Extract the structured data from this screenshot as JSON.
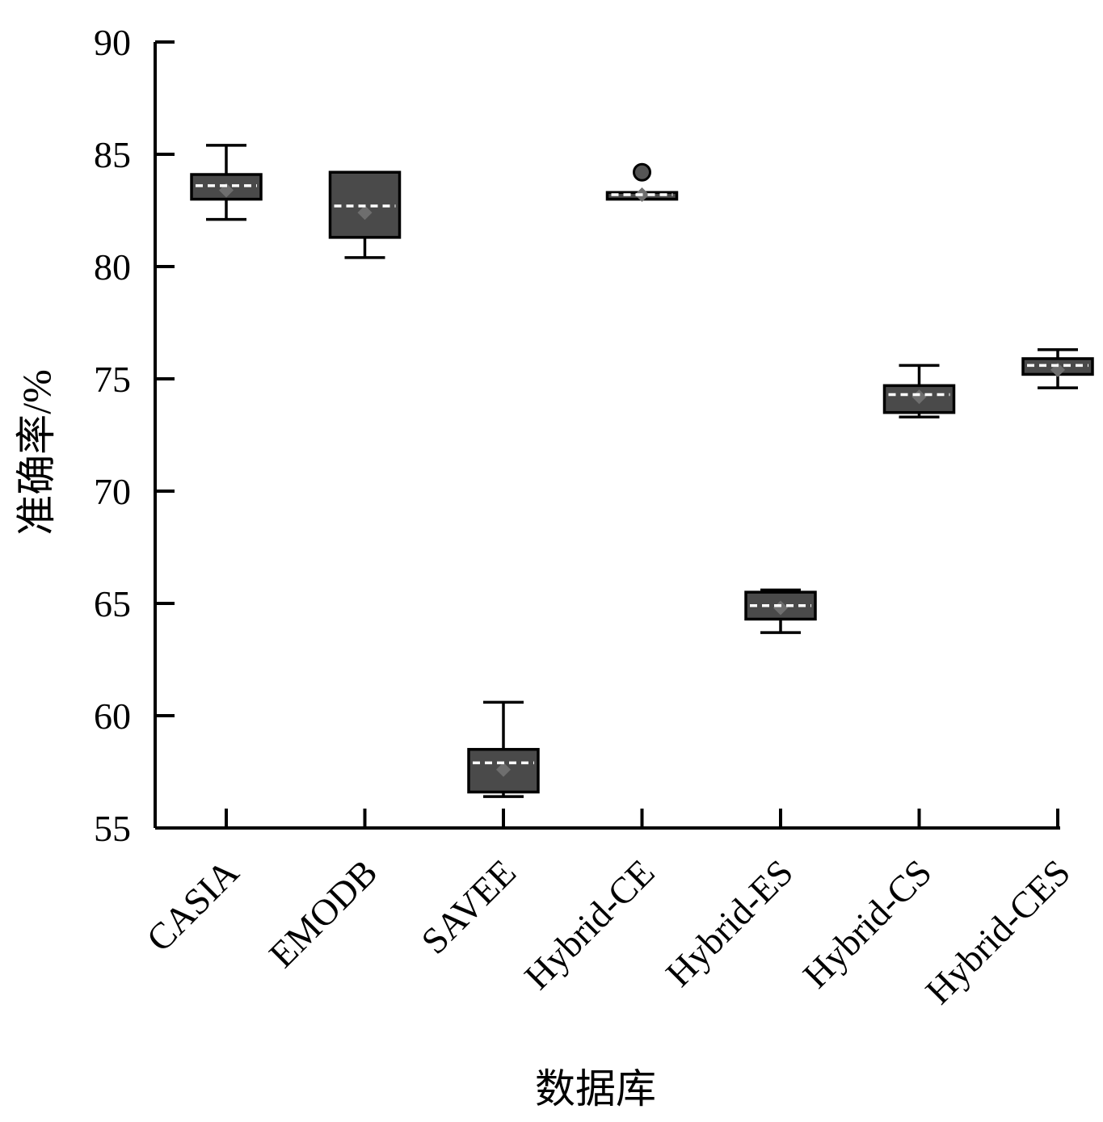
{
  "chart_data": {
    "type": "box",
    "title": "",
    "xlabel": "数据库",
    "ylabel": "准确率/%",
    "ylim": [
      55,
      90
    ],
    "yticks": [
      55,
      60,
      65,
      70,
      75,
      80,
      85,
      90
    ],
    "categories": [
      "CASIA",
      "EMODB",
      "SAVEE",
      "Hybrid-CE",
      "Hybrid-ES",
      "Hybrid-CS",
      "Hybrid-CES"
    ],
    "grid": false,
    "legend": "none",
    "boxes": [
      {
        "category": "CASIA",
        "whisker_low": 82.1,
        "q1": 83.0,
        "median": 83.4,
        "q3": 84.1,
        "whisker_high": 85.4,
        "mean": 83.6,
        "outliers": []
      },
      {
        "category": "EMODB",
        "whisker_low": 80.4,
        "q1": 81.3,
        "median": 82.4,
        "q3": 84.2,
        "whisker_high": 84.2,
        "mean": 82.7,
        "outliers": []
      },
      {
        "category": "SAVEE",
        "whisker_low": 56.4,
        "q1": 56.6,
        "median": 57.6,
        "q3": 58.5,
        "whisker_high": 60.6,
        "mean": 57.9,
        "outliers": []
      },
      {
        "category": "Hybrid-CE",
        "whisker_low": 83.0,
        "q1": 83.0,
        "median": 83.2,
        "q3": 83.3,
        "whisker_high": 83.3,
        "mean": 83.2,
        "outliers": [
          84.2
        ]
      },
      {
        "category": "Hybrid-ES",
        "whisker_low": 63.7,
        "q1": 64.3,
        "median": 64.8,
        "q3": 65.5,
        "whisker_high": 65.6,
        "mean": 64.9,
        "outliers": []
      },
      {
        "category": "Hybrid-CS",
        "whisker_low": 73.3,
        "q1": 73.5,
        "median": 74.2,
        "q3": 74.7,
        "whisker_high": 75.6,
        "mean": 74.3,
        "outliers": []
      },
      {
        "category": "Hybrid-CES",
        "whisker_low": 74.6,
        "q1": 75.2,
        "median": 75.4,
        "q3": 75.9,
        "whisker_high": 76.3,
        "mean": 75.6,
        "outliers": []
      }
    ],
    "colors": {
      "box_fill": "#4a4a4a",
      "box_stroke": "#000000",
      "median_marker": "#6e6e6e",
      "mean_line": "#ffffff",
      "outlier": "#555555"
    }
  }
}
